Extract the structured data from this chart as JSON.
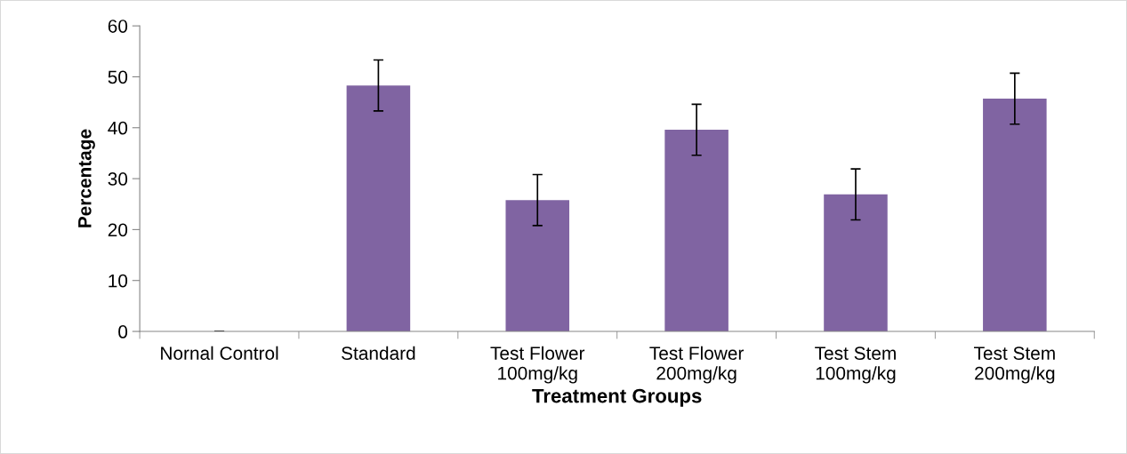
{
  "chart_data": {
    "type": "bar",
    "xlabel": "Treatment Groups",
    "ylabel": "Percentage",
    "categories": [
      "Nornal Control",
      "Standard",
      "Test Flower\n100mg/kg",
      "Test Flower\n200mg/kg",
      "Test Stem\n100mg/kg",
      "Test Stem\n200mg/kg"
    ],
    "values": [
      0,
      48.3,
      25.8,
      39.6,
      26.9,
      45.7
    ],
    "errors": [
      null,
      5,
      5,
      5,
      5,
      5
    ],
    "color": "#8064a2",
    "ylim": [
      0,
      60
    ],
    "yticks": [
      0,
      10,
      20,
      30,
      40,
      50,
      60
    ],
    "grid": false,
    "legend": false
  }
}
